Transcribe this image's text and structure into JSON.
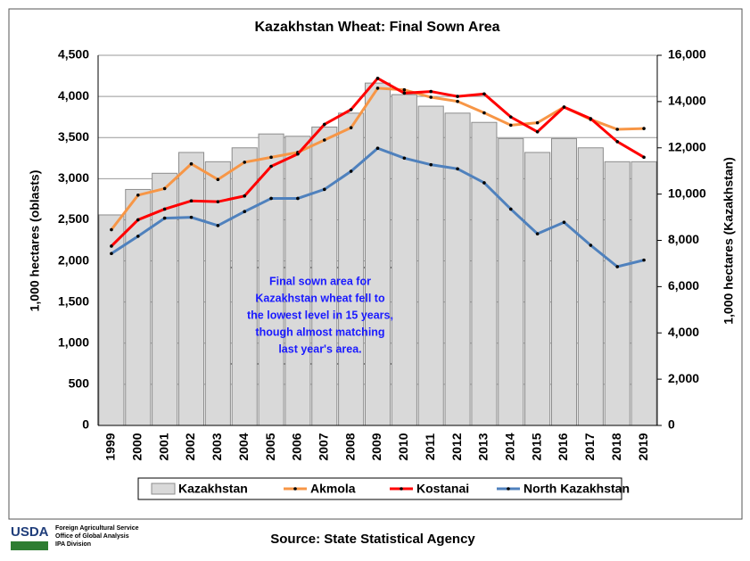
{
  "chart_data": {
    "type": "bar-line",
    "title": "Kazakhstan Wheat: Final Sown Area",
    "ylabel": "1,000 hectares (oblasts)",
    "y2label": "1,000 hectares (Kazakhstan)",
    "categories": [
      "1999",
      "2000",
      "2001",
      "2002",
      "2003",
      "2004",
      "2005",
      "2006",
      "2007",
      "2008",
      "2009",
      "2010",
      "2011",
      "2012",
      "2013",
      "2014",
      "2015",
      "2016",
      "2017",
      "2018",
      "2019"
    ],
    "series": [
      {
        "name": "Kazakhstan",
        "type": "bar",
        "axis": "y2",
        "color": "#d9d9d9",
        "values": [
          9100,
          10200,
          10900,
          11800,
          11400,
          12000,
          12600,
          12500,
          12900,
          13500,
          14800,
          14300,
          13800,
          13500,
          13100,
          12400,
          11800,
          12400,
          12000,
          11400,
          11400
        ]
      },
      {
        "name": "Akmola",
        "type": "line",
        "color": "#f79646",
        "values": [
          2380,
          2800,
          2880,
          3180,
          2990,
          3200,
          3260,
          3320,
          3470,
          3620,
          4100,
          4080,
          3990,
          3940,
          3800,
          3650,
          3680,
          3870,
          3720,
          3600,
          3610
        ]
      },
      {
        "name": "Kostanai",
        "type": "line",
        "color": "#ff0000",
        "values": [
          2180,
          2500,
          2630,
          2730,
          2720,
          2790,
          3150,
          3300,
          3660,
          3840,
          4220,
          4040,
          4060,
          4000,
          4030,
          3750,
          3570,
          3870,
          3730,
          3450,
          3260
        ]
      },
      {
        "name": "North Kazakhstan",
        "type": "line",
        "color": "#4f81bd",
        "values": [
          2090,
          2300,
          2520,
          2530,
          2430,
          2600,
          2760,
          2760,
          2870,
          3090,
          3370,
          3250,
          3170,
          3120,
          2950,
          2630,
          2330,
          2470,
          2190,
          1930,
          2010
        ]
      }
    ],
    "ylim": [
      0,
      4500
    ],
    "yticks": [
      0,
      500,
      {
        "value": 1000,
        "label": "1,000"
      },
      {
        "value": 1500,
        "label": "1,500"
      },
      {
        "value": 2000,
        "label": "2,000"
      },
      {
        "value": 2500,
        "label": "2,500"
      },
      {
        "value": 3000,
        "label": "3,000"
      },
      {
        "value": 3500,
        "label": "3,500"
      },
      {
        "value": 4000,
        "label": "4,000"
      },
      {
        "value": 4500,
        "label": "4,500"
      }
    ],
    "y2lim": [
      0,
      16000
    ],
    "y2ticks": [
      0,
      {
        "value": 2000,
        "label": "2,000"
      },
      {
        "value": 4000,
        "label": "4,000"
      },
      {
        "value": 6000,
        "label": "6,000"
      },
      {
        "value": 8000,
        "label": "8,000"
      },
      {
        "value": 10000,
        "label": "10,000"
      },
      {
        "value": 12000,
        "label": "12,000"
      },
      {
        "value": 14000,
        "label": "14,000"
      },
      {
        "value": 16000,
        "label": "16,000"
      }
    ],
    "grid": true,
    "legend": "bottom",
    "annotation": [
      "Final sown area for",
      "Kazakhstan wheat fell to",
      "the lowest level in 15 years,",
      "though almost matching",
      "last year's area."
    ]
  },
  "footer": {
    "logo": "USDA",
    "agency": [
      "Foreign Agricultural Service",
      "Office of Global Analysis",
      "IPA Division"
    ],
    "source": "Source: State Statistical Agency"
  }
}
